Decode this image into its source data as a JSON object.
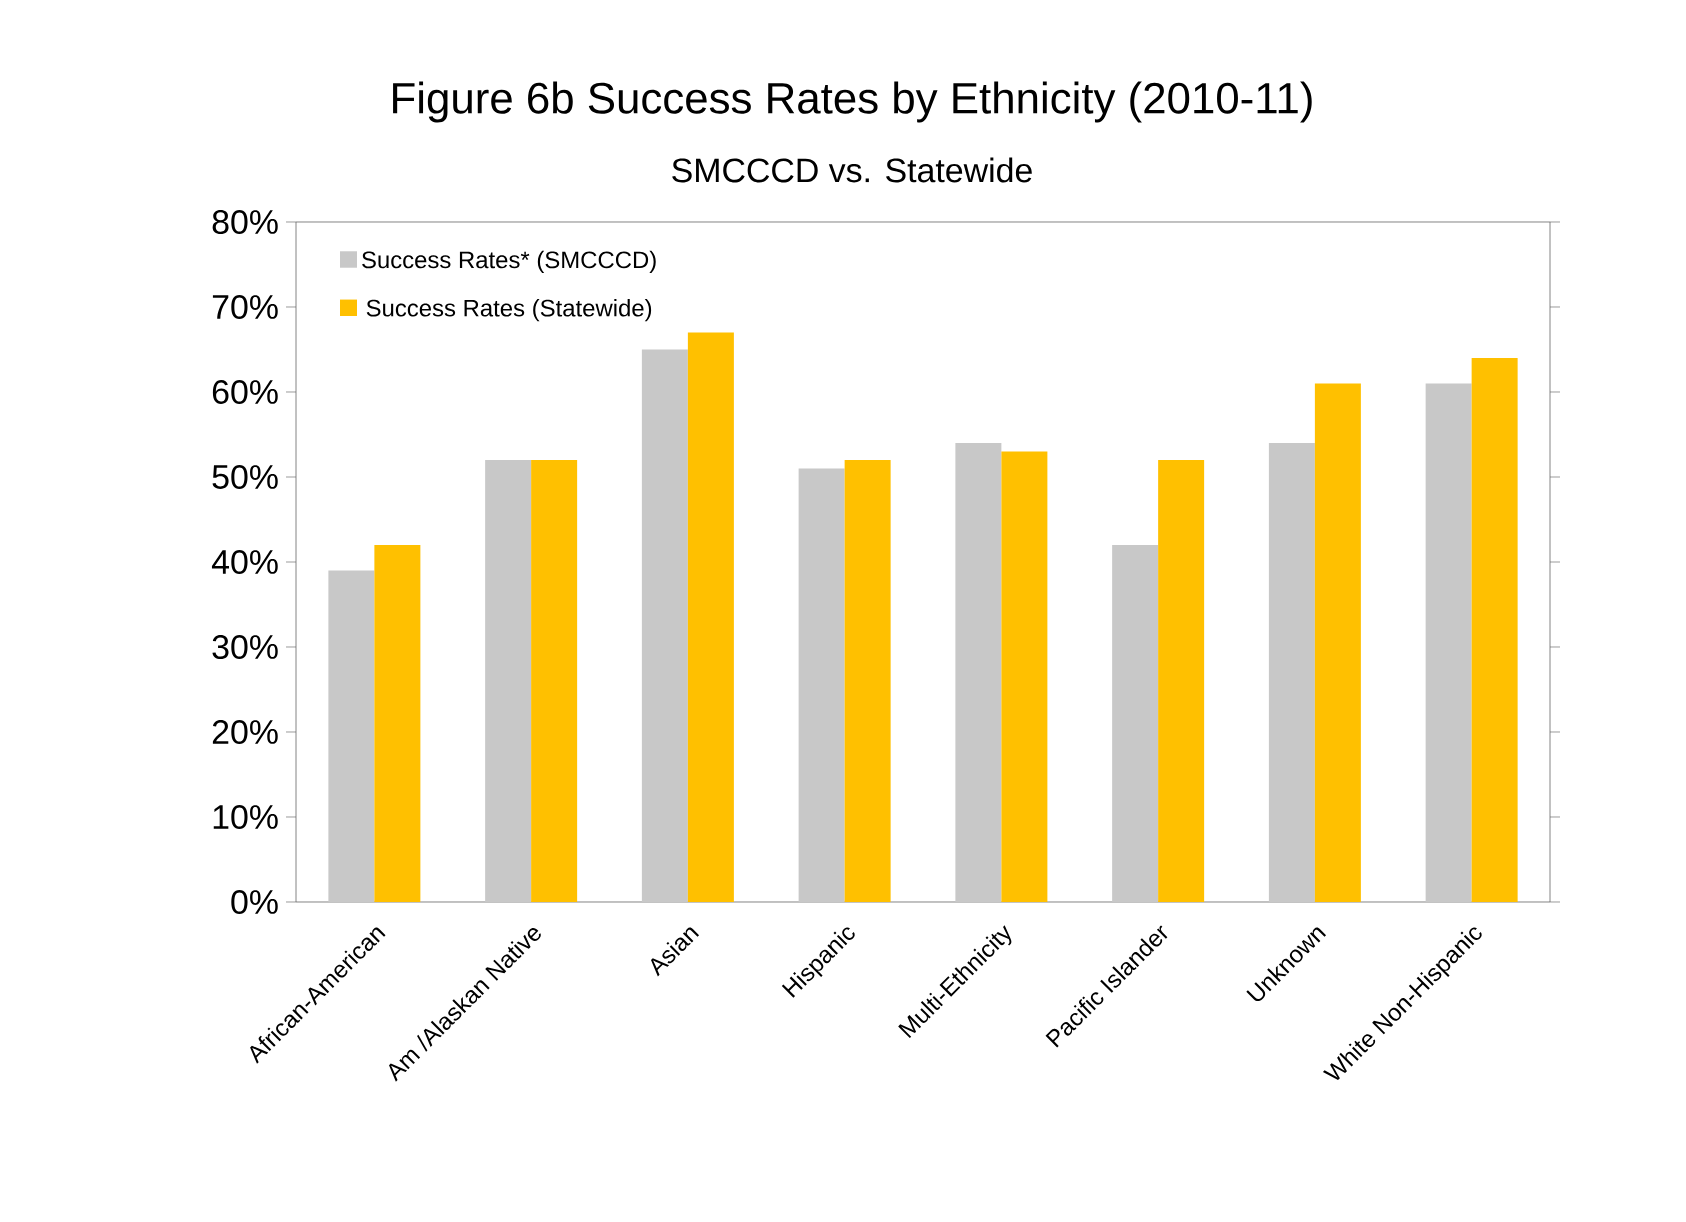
{
  "chart_data": {
    "type": "bar",
    "title": "Figure 6b Success Rates by Ethnicity (2010-11)",
    "subtitle": "SMCCCD vs. Statewide",
    "categories": [
      "African-American",
      "Am /Alaskan Native",
      "Asian",
      "Hispanic",
      "Multi-Ethnicity",
      "Pacific Islander",
      "Unknown",
      "White Non-Hispanic"
    ],
    "series": [
      {
        "name": "Success Rates* (SMCCCD)",
        "color": "#c8c8c8",
        "values": [
          39,
          52,
          65,
          51,
          54,
          42,
          54,
          61
        ]
      },
      {
        "name": "Success Rates (Statewide)",
        "color": "#ffc000",
        "values": [
          42,
          52,
          67,
          52,
          53,
          52,
          61,
          64
        ]
      }
    ],
    "ylim": [
      0,
      80
    ],
    "yticks": [
      {
        "value": 0,
        "label": "0%"
      },
      {
        "value": 10,
        "label": "10%"
      },
      {
        "value": 20,
        "label": "20%"
      },
      {
        "value": 30,
        "label": "30%"
      },
      {
        "value": 40,
        "label": "40%"
      },
      {
        "value": 50,
        "label": "50%"
      },
      {
        "value": 60,
        "label": "60%"
      },
      {
        "value": 70,
        "label": "70%"
      },
      {
        "value": 80,
        "label": "80%"
      }
    ],
    "grid": false,
    "legend": "top left"
  }
}
